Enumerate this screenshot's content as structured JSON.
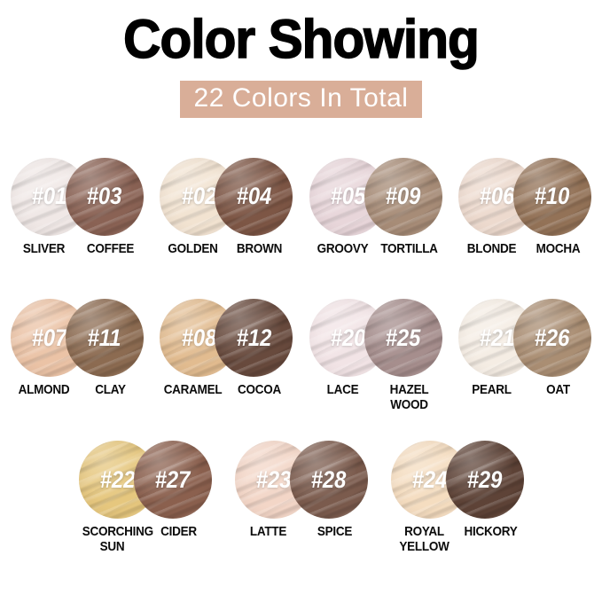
{
  "header": {
    "title": "Color Showing",
    "subtitle": "22 Colors In Total",
    "accent_color": "#D9AE98"
  },
  "swatch_rows": [
    [
      {
        "left": {
          "number": "#01",
          "name": "SLIVER",
          "color": "#F0E8E6"
        },
        "right": {
          "number": "#03",
          "name": "COFFEE",
          "color": "#8A6254"
        }
      },
      {
        "left": {
          "number": "#02",
          "name": "GOLDEN",
          "color": "#F2E3D1"
        },
        "right": {
          "number": "#04",
          "name": "BROWN",
          "color": "#7D5645"
        }
      },
      {
        "left": {
          "number": "#05",
          "name": "GROOVY",
          "color": "#E8D6DA"
        },
        "right": {
          "number": "#09",
          "name": "TORTILLA",
          "color": "#A78C77"
        }
      },
      {
        "left": {
          "number": "#06",
          "name": "BLONDE",
          "color": "#EDDACE"
        },
        "right": {
          "number": "#10",
          "name": "MOCHA",
          "color": "#937257"
        }
      }
    ],
    [
      {
        "left": {
          "number": "#07",
          "name": "ALMOND",
          "color": "#EBC3A6"
        },
        "right": {
          "number": "#11",
          "name": "CLAY",
          "color": "#8C6B51"
        }
      },
      {
        "left": {
          "number": "#08",
          "name": "CARAMEL",
          "color": "#E2BC90"
        },
        "right": {
          "number": "#12",
          "name": "COCOA",
          "color": "#684A3D"
        }
      },
      {
        "left": {
          "number": "#20",
          "name": "LACE",
          "color": "#F2E4E6"
        },
        "right": {
          "number": "#25",
          "name": "HAZEL WOOD",
          "color": "#A68E8D"
        }
      },
      {
        "left": {
          "number": "#21",
          "name": "PEARL",
          "color": "#F5EDE4"
        },
        "right": {
          "number": "#26",
          "name": "OAT",
          "color": "#AA8E73"
        }
      }
    ],
    [
      {
        "left": {
          "number": "#22",
          "name": "SCORCHING SUN",
          "color": "#E6C77E"
        },
        "right": {
          "number": "#27",
          "name": "CIDER",
          "color": "#8B604E"
        }
      },
      {
        "left": {
          "number": "#23",
          "name": "LATTE",
          "color": "#F3D6C7"
        },
        "right": {
          "number": "#28",
          "name": "SPICE",
          "color": "#7B5B4D"
        }
      },
      {
        "left": {
          "number": "#24",
          "name": "ROYAL YELLOW",
          "color": "#F5DDC0"
        },
        "right": {
          "number": "#29",
          "name": "HICKORY",
          "color": "#5E4337"
        }
      }
    ]
  ]
}
